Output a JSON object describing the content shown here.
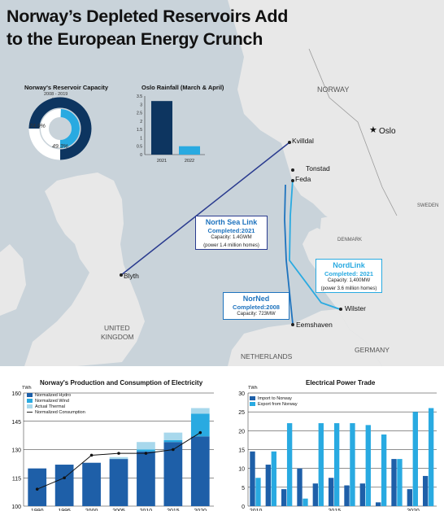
{
  "title_lines": [
    "Norway’s Depleted Reservoirs Add",
    "to the European Energy Crunch"
  ],
  "colors": {
    "navy": "#0d3560",
    "blue": "#1e73be",
    "light_blue": "#29aae1",
    "pale_blue": "#a8d8ec",
    "link_line": "#2a3b8f",
    "land": "#e9e9e9",
    "sea": "#c9d3da"
  },
  "map": {
    "places": {
      "oslo": "Oslo",
      "kvilldal": "Kvilldal",
      "tonstad": "Tonstad",
      "feda": "Feda",
      "blyth": "Blyth",
      "wilster": "Wilster",
      "eemshaven": "Eemshaven"
    },
    "countries": {
      "norway": "NORWAY",
      "sweden": "SWEDEN",
      "denmark": "DENMARK",
      "uk_line1": "UNITED",
      "uk_line2": "KINGDOM",
      "netherlands": "NETHERLANDS",
      "germany": "GERMANY"
    },
    "links": [
      {
        "name": "North Sea Link",
        "completed": "Completed:2021",
        "capacity": "Capacity: 1.4GWM",
        "homes": "(power 1.4 million homes)"
      },
      {
        "name": "NordLink",
        "completed": "Completed: 2021",
        "capacity": "Capacity: 1,400MW",
        "homes": "(power 3.6 million homes)"
      },
      {
        "name": "NorNed",
        "completed": "Completed:2008",
        "capacity": "Capacity: 723MW"
      }
    ]
  },
  "chart_data": [
    {
      "type": "pie",
      "title": "Norway's Reservoir Capacity",
      "average_label_lines": [
        "2008 - 2019",
        "Average"
      ],
      "year_label": "2022",
      "slices": [
        {
          "name": "2008 - 2019 Average",
          "value": 74.9,
          "label": "74.9%"
        },
        {
          "name": "2022",
          "value": 49.3,
          "label": "49.3%"
        }
      ]
    },
    {
      "type": "bar",
      "title": "Oslo Rainfall (March & April)",
      "categories": [
        "2021",
        "2022"
      ],
      "values": [
        3.2,
        0.5
      ],
      "yticks": [
        "0",
        "0.5",
        "1",
        "1.5",
        "2",
        "2.5",
        "3",
        "3.5"
      ],
      "ylim": [
        0,
        3.5
      ]
    },
    {
      "type": "bar",
      "title": "Norway's Production and Consumption of Electricity",
      "unit": "TWh",
      "categories": [
        "1990",
        "1995",
        "2000",
        "2005",
        "2010",
        "2015",
        "2020"
      ],
      "series": [
        {
          "name": "Normalized Hydro",
          "values": [
            120,
            122,
            123,
            125,
            129,
            134,
            137
          ]
        },
        {
          "name": "Normalized Wind",
          "values": [
            0,
            0,
            0,
            0,
            1,
            1,
            12
          ]
        },
        {
          "name": "Actual Thermal",
          "values": [
            0,
            0,
            0,
            1,
            4,
            4,
            3
          ]
        },
        {
          "name": "Normalized Consumption",
          "values": [
            109,
            115,
            127,
            128,
            128,
            130,
            139
          ]
        }
      ],
      "yticks": [
        "100",
        "115",
        "130",
        "145",
        "160"
      ],
      "ylim": [
        100,
        160
      ]
    },
    {
      "type": "bar",
      "title": "Electrical Power Trade",
      "unit": "TWh",
      "series": [
        {
          "name": "Import to Norway",
          "values": [
            14.5,
            11,
            4.5,
            10,
            6,
            7.5,
            5.5,
            6,
            1,
            12.5,
            4.5,
            8
          ]
        },
        {
          "name": "Export from Norway",
          "values": [
            7.5,
            14.5,
            22,
            2,
            22,
            22,
            22,
            21.5,
            19,
            12.5,
            25,
            26
          ]
        }
      ],
      "xticks": [
        "2010",
        "2015",
        "2020"
      ],
      "yticks": [
        "0",
        "5",
        "10",
        "15",
        "20",
        "25",
        "30"
      ],
      "ylim": [
        0,
        30
      ]
    }
  ]
}
